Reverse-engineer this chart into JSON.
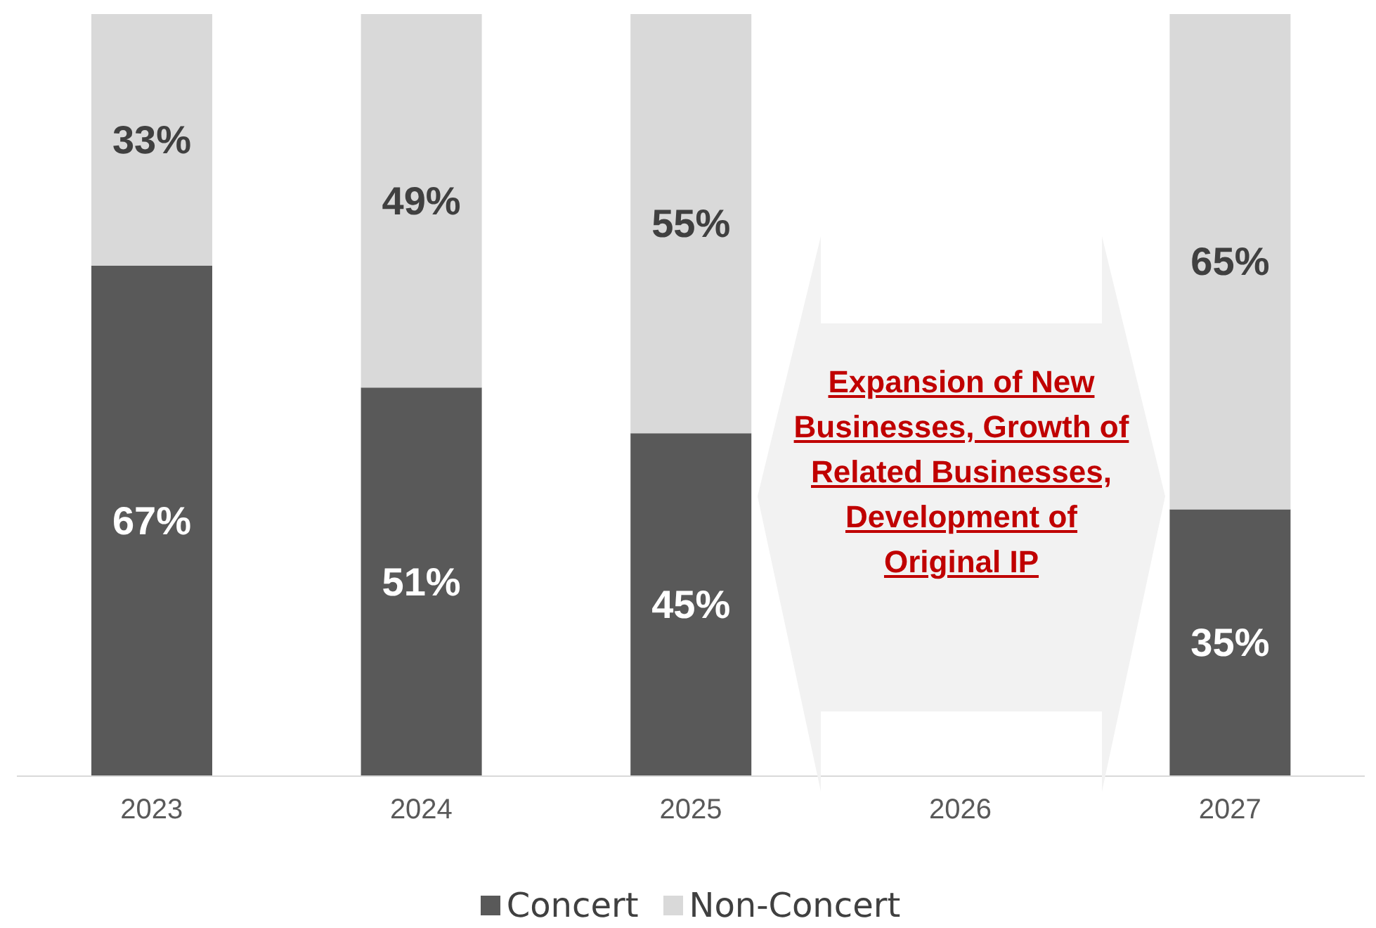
{
  "chart_data": {
    "type": "bar",
    "stacked": true,
    "categories": [
      "2023",
      "2024",
      "2025",
      "2026",
      "2027"
    ],
    "ylim": [
      0,
      100
    ],
    "series": [
      {
        "name": "Concert",
        "color": "#595959",
        "values": [
          67,
          51,
          45,
          null,
          35
        ],
        "value_labels": [
          "67%",
          "51%",
          "45%",
          null,
          "35%"
        ]
      },
      {
        "name": "Non-Concert",
        "color": "#d9d9d9",
        "values": [
          33,
          49,
          55,
          null,
          65
        ],
        "value_labels": [
          "33%",
          "49%",
          "55%",
          null,
          "65%"
        ]
      }
    ],
    "legend": "bottom",
    "annotations": [
      "Expansion of New Businesses, Growth of Related Businesses, Development of Original IP"
    ]
  }
}
